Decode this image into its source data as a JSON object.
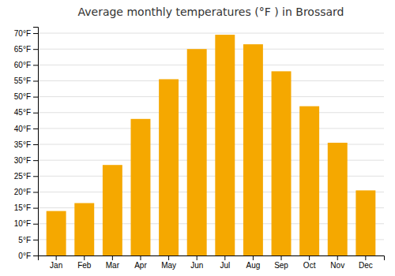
{
  "chart_data": {
    "type": "bar",
    "title": "Average monthly temperatures (°F ) in Brossard",
    "categories": [
      "Jan",
      "Feb",
      "Mar",
      "Apr",
      "May",
      "Jun",
      "Jul",
      "Aug",
      "Sep",
      "Oct",
      "Nov",
      "Dec"
    ],
    "values": [
      14,
      16.5,
      28.5,
      43,
      55.5,
      65,
      69.5,
      66.5,
      58,
      47,
      35.5,
      20.5
    ],
    "color": "#F5A800",
    "ylim": [
      0,
      72
    ],
    "yticks": [
      {
        "value": 0,
        "label": "0°F"
      },
      {
        "value": 5,
        "label": "5°F"
      },
      {
        "value": 10,
        "label": "10°F"
      },
      {
        "value": 15,
        "label": "15°F"
      },
      {
        "value": 20,
        "label": "20°F"
      },
      {
        "value": 25,
        "label": "25°F"
      },
      {
        "value": 30,
        "label": "30°F"
      },
      {
        "value": 35,
        "label": "35°F"
      },
      {
        "value": 40,
        "label": "40°F"
      },
      {
        "value": 45,
        "label": "45°F"
      },
      {
        "value": 50,
        "label": "50°F"
      },
      {
        "value": 55,
        "label": "55°F"
      },
      {
        "value": 60,
        "label": "60°F"
      },
      {
        "value": 65,
        "label": "65°F"
      },
      {
        "value": 70,
        "label": "70°F"
      }
    ],
    "grid": true
  }
}
